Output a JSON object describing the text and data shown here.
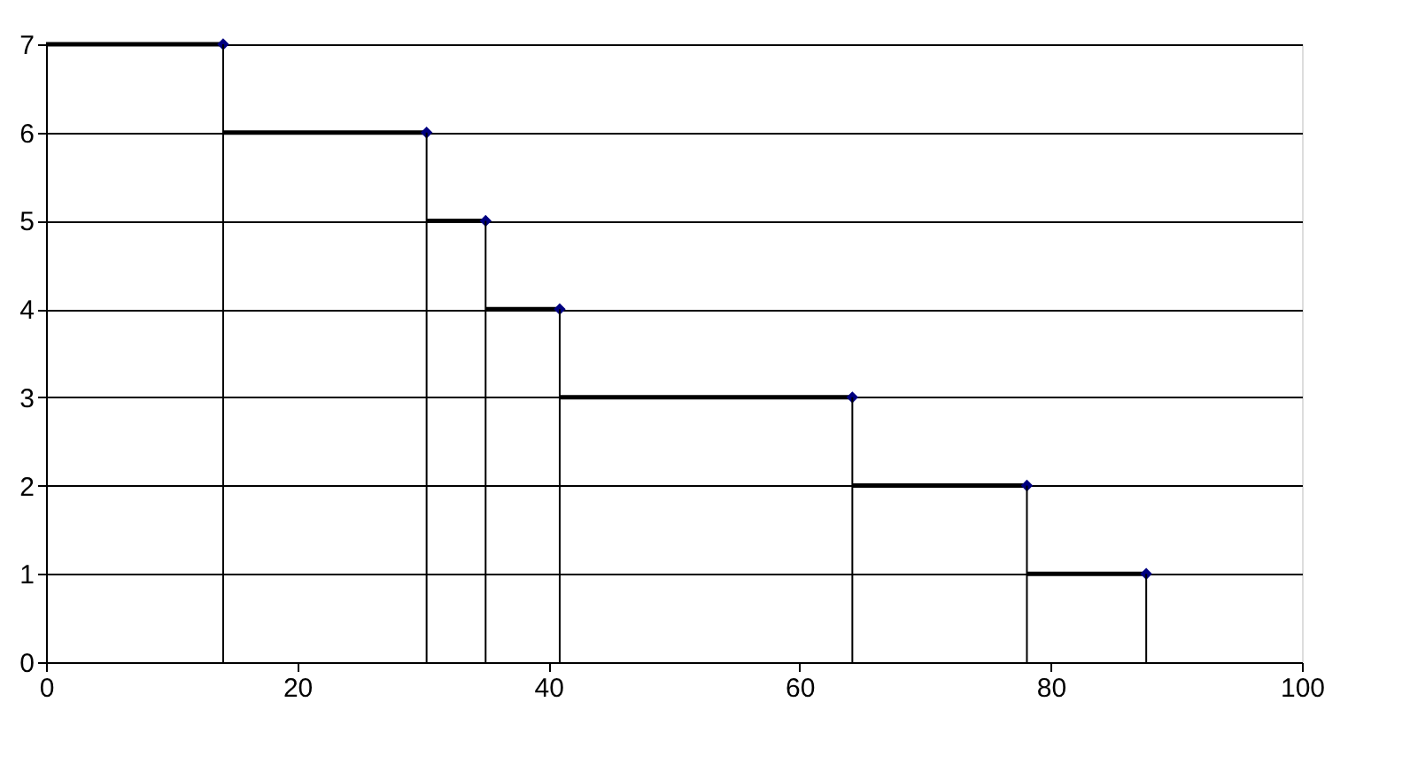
{
  "chart_data": {
    "type": "scatter",
    "xlim": [
      0,
      100
    ],
    "xticks": [
      0,
      20,
      40,
      60,
      80,
      100
    ],
    "ylim": [
      0,
      7
    ],
    "yticks": [
      0,
      1,
      2,
      3,
      4,
      5,
      6,
      7
    ],
    "grid": "y",
    "series": [
      {
        "color": "#000080",
        "marker": "diamond",
        "x": [
          14.1,
          30.3,
          35,
          40.9,
          64.2,
          78.1,
          87.6
        ],
        "values": [
          7,
          6,
          5,
          4,
          3,
          2,
          1
        ],
        "xerrors": [
          [
            0,
            14.1
          ],
          [
            14.1,
            30.3
          ],
          [
            30.3,
            35
          ],
          [
            35,
            40.9
          ],
          [
            40.9,
            64.2
          ],
          [
            64.2,
            78.1
          ],
          [
            78.1,
            87.6
          ]
        ]
      },
      {
        "type": "bar",
        "color": "#000000",
        "x": [
          14.1,
          30.3,
          35,
          40.9,
          64.2,
          78.1,
          87.6
        ],
        "values": [
          7,
          6,
          5,
          4,
          3,
          2,
          1
        ]
      }
    ]
  }
}
